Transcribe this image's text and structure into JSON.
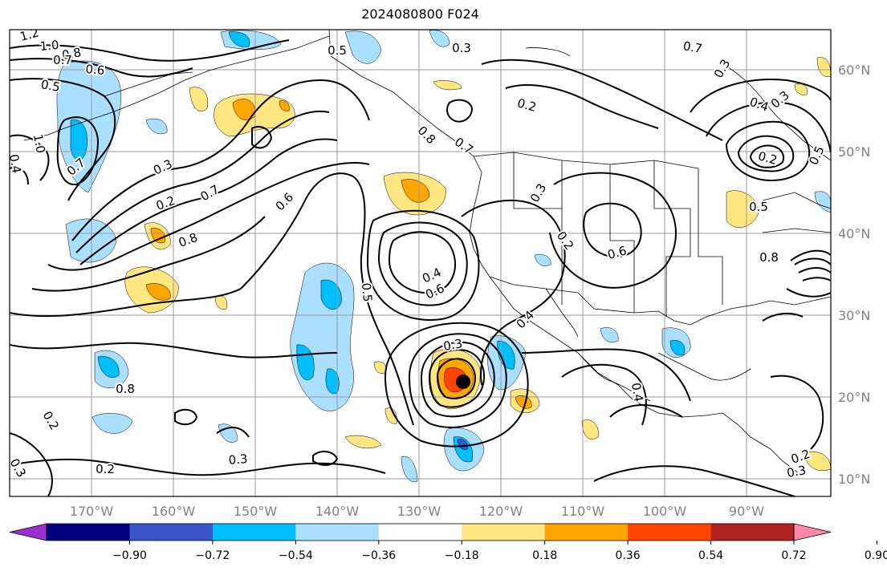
{
  "title": "2024080800 F024",
  "map": {
    "lon_labels": [
      "170°W",
      "160°W",
      "150°W",
      "140°W",
      "130°W",
      "120°W",
      "110°W",
      "100°W",
      "90°W"
    ],
    "lat_labels": [
      "60°N",
      "50°N",
      "40°N",
      "30°N",
      "20°N",
      "10°N"
    ],
    "frame_color": "#000000",
    "grid_color": "#999999",
    "contour_labels": [
      "1.2",
      "1.0",
      "0.8",
      "0.7",
      "0.6",
      "0.5",
      "0.4",
      "0.3",
      "0.2",
      "0.7",
      "0.8",
      "1.0",
      "0.7",
      "0.6",
      "0.5",
      "0.4",
      "0.6",
      "0.8",
      "0.7",
      "0.5",
      "0.3",
      "0.2",
      "0.3",
      "0.2",
      "0.7",
      "0.3",
      "0.4",
      "0.3",
      "0.2",
      "0.5",
      "0.5",
      "0.6",
      "0.8",
      "0.4",
      "0.3",
      "0.4",
      "0.8",
      "0.2",
      "0.3",
      "0.2",
      "0.3",
      "0.2",
      "0.3"
    ],
    "storm_marker": "filled-black-circle"
  },
  "colorbar": {
    "tick_labels": [
      "−0.90",
      "−0.72",
      "−0.54",
      "−0.36",
      "−0.18",
      "0.18",
      "0.36",
      "0.54",
      "0.72",
      "0.90"
    ],
    "colors": [
      "#9b30d0",
      "#000080",
      "#3a55cc",
      "#00bfff",
      "#aadfff",
      "#ffffff",
      "#ffe680",
      "#ffa500",
      "#ff4500",
      "#b22222",
      "#ff88aa"
    ]
  }
}
